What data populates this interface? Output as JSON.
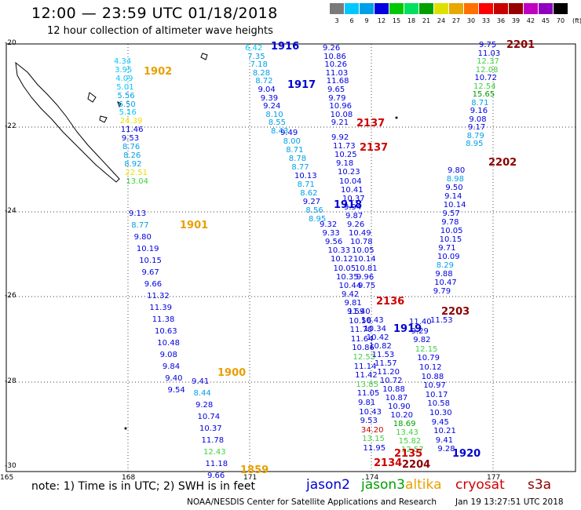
{
  "title": "12:00 — 23:59 UTC 01/18/2018",
  "subtitle": "12 hour collection of altimeter wave heights",
  "scale": {
    "unit": "(ft)",
    "steps": [
      {
        "label": "3",
        "color": "#7a7a7a"
      },
      {
        "label": "6",
        "color": "#00c8ff"
      },
      {
        "label": "9",
        "color": "#00a0e8"
      },
      {
        "label": "12",
        "color": "#0000e0"
      },
      {
        "label": "15",
        "color": "#00c800"
      },
      {
        "label": "18",
        "color": "#00e060"
      },
      {
        "label": "21",
        "color": "#00a000"
      },
      {
        "label": "24",
        "color": "#e0e000"
      },
      {
        "label": "27",
        "color": "#e8a800"
      },
      {
        "label": "30",
        "color": "#ff7000"
      },
      {
        "label": "33",
        "color": "#ff0000"
      },
      {
        "label": "36",
        "color": "#c80000"
      },
      {
        "label": "39",
        "color": "#960000"
      },
      {
        "label": "42",
        "color": "#c000c0"
      },
      {
        "label": "45",
        "color": "#9000c0"
      },
      {
        "label": "70",
        "color": "#000000"
      }
    ]
  },
  "axes": {
    "y_labels": [
      "-20",
      "-22",
      "-24",
      "-26",
      "-28",
      "-30"
    ],
    "x_labels": [
      "165",
      "168",
      "171",
      "174",
      "177"
    ]
  },
  "note": "note: 1) Time is in UTC; 2) SWH is in feet",
  "legend": [
    {
      "name": "jason2",
      "color": "#0000d0"
    },
    {
      "name": "jason3",
      "color": "#00a000"
    },
    {
      "name": "altika",
      "color": "#e8a000"
    },
    {
      "name": "cryosat",
      "color": "#d00000"
    },
    {
      "name": "s3a",
      "color": "#8b0000"
    }
  ],
  "credit": "NOAA/NESDIS Center for Satellite Applications and Research",
  "generated": "Jan 19 13:27:51 UTC 2018",
  "passes": [
    {
      "time": "1902",
      "color": "#e8a000",
      "values": [
        {
          "v": "4.34",
          "c": "#00c8ff"
        },
        {
          "v": "3.95",
          "c": "#00c8ff"
        },
        {
          "v": "4.09",
          "c": "#00c8ff"
        },
        {
          "v": "5.01",
          "c": "#00c8ff"
        },
        {
          "v": "5.56",
          "c": "#00a0e8"
        },
        {
          "v": "6.50",
          "c": "#00a0e8"
        },
        {
          "v": "5.16",
          "c": "#00c8ff"
        },
        {
          "v": "24.39",
          "c": "#e8e000"
        },
        {
          "v": "11.46",
          "c": "#0000e0"
        },
        {
          "v": "9.53",
          "c": "#0000e0"
        },
        {
          "v": "8.76",
          "c": "#00a0e8"
        },
        {
          "v": "8.26",
          "c": "#00a0e8"
        },
        {
          "v": "8.92",
          "c": "#00a0e8"
        },
        {
          "v": "22.51",
          "c": "#e8e000"
        },
        {
          "v": "13.04",
          "c": "#40d040"
        }
      ]
    },
    {
      "time": "1901",
      "color": "#e8a000",
      "values": [
        {
          "v": "9.13",
          "c": "#0000e0"
        },
        {
          "v": "8.77",
          "c": "#00a0e8"
        },
        {
          "v": "9.80",
          "c": "#0000e0"
        },
        {
          "v": "10.19",
          "c": "#0000e0"
        },
        {
          "v": "10.15",
          "c": "#0000e0"
        },
        {
          "v": "9.67",
          "c": "#0000e0"
        },
        {
          "v": "9.66",
          "c": "#0000e0"
        },
        {
          "v": "11.32",
          "c": "#0000e0"
        },
        {
          "v": "11.39",
          "c": "#0000e0"
        },
        {
          "v": "11.38",
          "c": "#0000e0"
        },
        {
          "v": "10.63",
          "c": "#0000e0"
        },
        {
          "v": "10.48",
          "c": "#0000e0"
        },
        {
          "v": "9.08",
          "c": "#0000e0"
        },
        {
          "v": "9.84",
          "c": "#0000e0"
        },
        {
          "v": "9.40",
          "c": "#0000e0"
        },
        {
          "v": "9.54",
          "c": "#0000e0"
        }
      ]
    },
    {
      "time": "1900",
      "color": "#e8a000",
      "values": [
        {
          "v": "9.41",
          "c": "#0000e0"
        },
        {
          "v": "8.44",
          "c": "#00a0e8"
        },
        {
          "v": "9.28",
          "c": "#0000e0"
        },
        {
          "v": "10.74",
          "c": "#0000e0"
        },
        {
          "v": "10.37",
          "c": "#0000e0"
        },
        {
          "v": "11.78",
          "c": "#0000e0"
        },
        {
          "v": "12.43",
          "c": "#40d040"
        },
        {
          "v": "11.18",
          "c": "#0000e0"
        },
        {
          "v": "9.66",
          "c": "#0000e0"
        }
      ]
    },
    {
      "time": "1859",
      "color": "#e8a000",
      "values": []
    },
    {
      "time": "1916",
      "color": "#0000d0",
      "values": [
        {
          "v": "6.42",
          "c": "#00c8ff"
        },
        {
          "v": "7.35",
          "c": "#00a0e8"
        },
        {
          "v": "7.18",
          "c": "#00a0e8"
        },
        {
          "v": "8.28",
          "c": "#00a0e8"
        },
        {
          "v": "8.72",
          "c": "#00a0e8"
        },
        {
          "v": "9.04",
          "c": "#0000e0"
        },
        {
          "v": "9.39",
          "c": "#0000e0"
        },
        {
          "v": "9.24",
          "c": "#0000e0"
        },
        {
          "v": "8.10",
          "c": "#00a0e8"
        },
        {
          "v": "8.55",
          "c": "#00a0e8"
        },
        {
          "v": "8.43",
          "c": "#00a0e8"
        }
      ]
    },
    {
      "time": "1917",
      "color": "#0000d0",
      "values": [
        {
          "v": "9.49",
          "c": "#0000e0"
        },
        {
          "v": "8.00",
          "c": "#00a0e8"
        },
        {
          "v": "8.71",
          "c": "#00a0e8"
        },
        {
          "v": "8.78",
          "c": "#00a0e8"
        },
        {
          "v": "8.77",
          "c": "#00a0e8"
        },
        {
          "v": "10.13",
          "c": "#0000e0"
        },
        {
          "v": "8.71",
          "c": "#00a0e8"
        },
        {
          "v": "8.62",
          "c": "#00a0e8"
        },
        {
          "v": "9.27",
          "c": "#0000e0"
        },
        {
          "v": "8.56",
          "c": "#00a0e8"
        },
        {
          "v": "8.95",
          "c": "#00a0e8"
        }
      ]
    },
    {
      "time": "1918",
      "color": "#0000d0",
      "values": [
        {
          "v": "9.32",
          "c": "#0000e0"
        },
        {
          "v": "9.33",
          "c": "#0000e0"
        },
        {
          "v": "9.56",
          "c": "#0000e0"
        },
        {
          "v": "10.33",
          "c": "#0000e0"
        },
        {
          "v": "10.12",
          "c": "#0000e0"
        },
        {
          "v": "10.05",
          "c": "#0000e0"
        },
        {
          "v": "10.35",
          "c": "#0000e0"
        },
        {
          "v": "10.44",
          "c": "#0000e0"
        },
        {
          "v": "9.42",
          "c": "#0000e0"
        },
        {
          "v": "9.81",
          "c": "#0000e0"
        },
        {
          "v": "9.59",
          "c": "#0000e0"
        }
      ]
    },
    {
      "time": "2137",
      "color": "#d00000",
      "values": [
        {
          "v": "9.26",
          "c": "#0000e0"
        },
        {
          "v": "10.86",
          "c": "#0000e0"
        },
        {
          "v": "10.26",
          "c": "#0000e0"
        },
        {
          "v": "11.03",
          "c": "#0000e0"
        },
        {
          "v": "11.68",
          "c": "#0000e0"
        },
        {
          "v": "9.65",
          "c": "#0000e0"
        },
        {
          "v": "9.79",
          "c": "#0000e0"
        },
        {
          "v": "10.96",
          "c": "#0000e0"
        },
        {
          "v": "10.08",
          "c": "#0000e0"
        },
        {
          "v": "9.21",
          "c": "#0000e0"
        }
      ]
    },
    {
      "time": "2137",
      "color": "#d00000",
      "values": [
        {
          "v": "9.92",
          "c": "#0000e0"
        },
        {
          "v": "11.73",
          "c": "#0000e0"
        },
        {
          "v": "10.25",
          "c": "#0000e0"
        },
        {
          "v": "9.18",
          "c": "#0000e0"
        },
        {
          "v": "10.23",
          "c": "#0000e0"
        },
        {
          "v": "10.04",
          "c": "#0000e0"
        },
        {
          "v": "10.41",
          "c": "#0000e0"
        },
        {
          "v": "10.37",
          "c": "#0000e0"
        },
        {
          "v": "9.94",
          "c": "#0000e0"
        },
        {
          "v": "9.87",
          "c": "#0000e0"
        },
        {
          "v": "9.26",
          "c": "#0000e0"
        },
        {
          "v": "10.49",
          "c": "#0000e0"
        },
        {
          "v": "10.78",
          "c": "#0000e0"
        },
        {
          "v": "10.05",
          "c": "#0000e0"
        },
        {
          "v": "10.14",
          "c": "#0000e0"
        },
        {
          "v": "10.81",
          "c": "#0000e0"
        },
        {
          "v": "9.96",
          "c": "#0000e0"
        },
        {
          "v": "9.75",
          "c": "#0000e0"
        }
      ]
    },
    {
      "time": "2136",
      "color": "#d00000",
      "values": [
        {
          "v": "11.40",
          "c": "#0000e0"
        },
        {
          "v": "10.56",
          "c": "#0000e0"
        },
        {
          "v": "11.70",
          "c": "#0000e0"
        },
        {
          "v": "11.64",
          "c": "#0000e0"
        },
        {
          "v": "10.86",
          "c": "#0000e0"
        },
        {
          "v": "12.53",
          "c": "#40d040"
        },
        {
          "v": "11.14",
          "c": "#0000e0"
        },
        {
          "v": "11.42",
          "c": "#0000e0"
        },
        {
          "v": "13.85",
          "c": "#40d040"
        },
        {
          "v": "11.05",
          "c": "#0000e0"
        },
        {
          "v": "9.81",
          "c": "#0000e0"
        },
        {
          "v": "10.43",
          "c": "#0000e0"
        },
        {
          "v": "9.53",
          "c": "#0000e0"
        },
        {
          "v": "34.20",
          "c": "#c80000"
        },
        {
          "v": "13.15",
          "c": "#40d040"
        },
        {
          "v": "11.95",
          "c": "#0000e0"
        }
      ]
    },
    {
      "time": "1919",
      "color": "#0000d0",
      "values": [
        {
          "v": "10.43",
          "c": "#0000e0"
        },
        {
          "v": "10.34",
          "c": "#0000e0"
        },
        {
          "v": "10.42",
          "c": "#0000e0"
        },
        {
          "v": "10.82",
          "c": "#0000e0"
        },
        {
          "v": "11.53",
          "c": "#0000e0"
        },
        {
          "v": "11.57",
          "c": "#0000e0"
        },
        {
          "v": "11.20",
          "c": "#0000e0"
        },
        {
          "v": "10.72",
          "c": "#0000e0"
        },
        {
          "v": "10.88",
          "c": "#0000e0"
        },
        {
          "v": "10.87",
          "c": "#0000e0"
        },
        {
          "v": "10.90",
          "c": "#0000e0"
        },
        {
          "v": "10.20",
          "c": "#0000e0"
        },
        {
          "v": "18.69",
          "c": "#00a000"
        },
        {
          "v": "13.43",
          "c": "#40d040"
        },
        {
          "v": "15.82",
          "c": "#40d040"
        },
        {
          "v": "12.57",
          "c": "#40d040"
        }
      ]
    },
    {
      "time": "2135",
      "color": "#d00000",
      "values": []
    },
    {
      "time": "2134",
      "color": "#d00000",
      "values": []
    },
    {
      "time": "2204",
      "color": "#8b0000",
      "values": []
    },
    {
      "time": "1920",
      "color": "#0000d0",
      "values": [
        {
          "v": "11.40",
          "c": "#0000e0"
        },
        {
          "v": "9.29",
          "c": "#0000e0"
        },
        {
          "v": "9.82",
          "c": "#0000e0"
        },
        {
          "v": "12.15",
          "c": "#40d040"
        },
        {
          "v": "10.79",
          "c": "#0000e0"
        },
        {
          "v": "10.12",
          "c": "#0000e0"
        },
        {
          "v": "10.88",
          "c": "#0000e0"
        },
        {
          "v": "10.97",
          "c": "#0000e0"
        },
        {
          "v": "10.17",
          "c": "#0000e0"
        },
        {
          "v": "10.58",
          "c": "#0000e0"
        },
        {
          "v": "10.30",
          "c": "#0000e0"
        },
        {
          "v": "9.45",
          "c": "#0000e0"
        },
        {
          "v": "10.21",
          "c": "#0000e0"
        },
        {
          "v": "9.41",
          "c": "#0000e0"
        },
        {
          "v": "9.28",
          "c": "#0000e0"
        }
      ]
    },
    {
      "time": "2201",
      "color": "#8b0000",
      "values": [
        {
          "v": "9.75",
          "c": "#0000e0"
        },
        {
          "v": "11.03",
          "c": "#0000e0"
        },
        {
          "v": "12.37",
          "c": "#40d040"
        },
        {
          "v": "12.08",
          "c": "#40d040"
        },
        {
          "v": "10.72",
          "c": "#0000e0"
        },
        {
          "v": "12.54",
          "c": "#40d040"
        },
        {
          "v": "15.65",
          "c": "#00a000"
        },
        {
          "v": "8.71",
          "c": "#00a0e8"
        },
        {
          "v": "9.16",
          "c": "#0000e0"
        },
        {
          "v": "9.08",
          "c": "#0000e0"
        },
        {
          "v": "9.17",
          "c": "#0000e0"
        },
        {
          "v": "8.79",
          "c": "#00a0e8"
        },
        {
          "v": "8.95",
          "c": "#00a0e8"
        }
      ]
    },
    {
      "time": "2202",
      "color": "#8b0000",
      "values": [
        {
          "v": "9.80",
          "c": "#0000e0"
        },
        {
          "v": "8.98",
          "c": "#00a0e8"
        },
        {
          "v": "9.50",
          "c": "#0000e0"
        },
        {
          "v": "9.14",
          "c": "#0000e0"
        },
        {
          "v": "10.14",
          "c": "#0000e0"
        },
        {
          "v": "9.57",
          "c": "#0000e0"
        },
        {
          "v": "9.78",
          "c": "#0000e0"
        },
        {
          "v": "10.05",
          "c": "#0000e0"
        },
        {
          "v": "10.15",
          "c": "#0000e0"
        },
        {
          "v": "9.71",
          "c": "#0000e0"
        },
        {
          "v": "10.09",
          "c": "#0000e0"
        },
        {
          "v": "8.29",
          "c": "#00a0e8"
        },
        {
          "v": "9.88",
          "c": "#0000e0"
        },
        {
          "v": "10.47",
          "c": "#0000e0"
        },
        {
          "v": "9.79",
          "c": "#0000e0"
        }
      ]
    },
    {
      "time": "2203",
      "color": "#8b0000",
      "values": [
        {
          "v": "11.53",
          "c": "#0000e0"
        }
      ]
    }
  ]
}
